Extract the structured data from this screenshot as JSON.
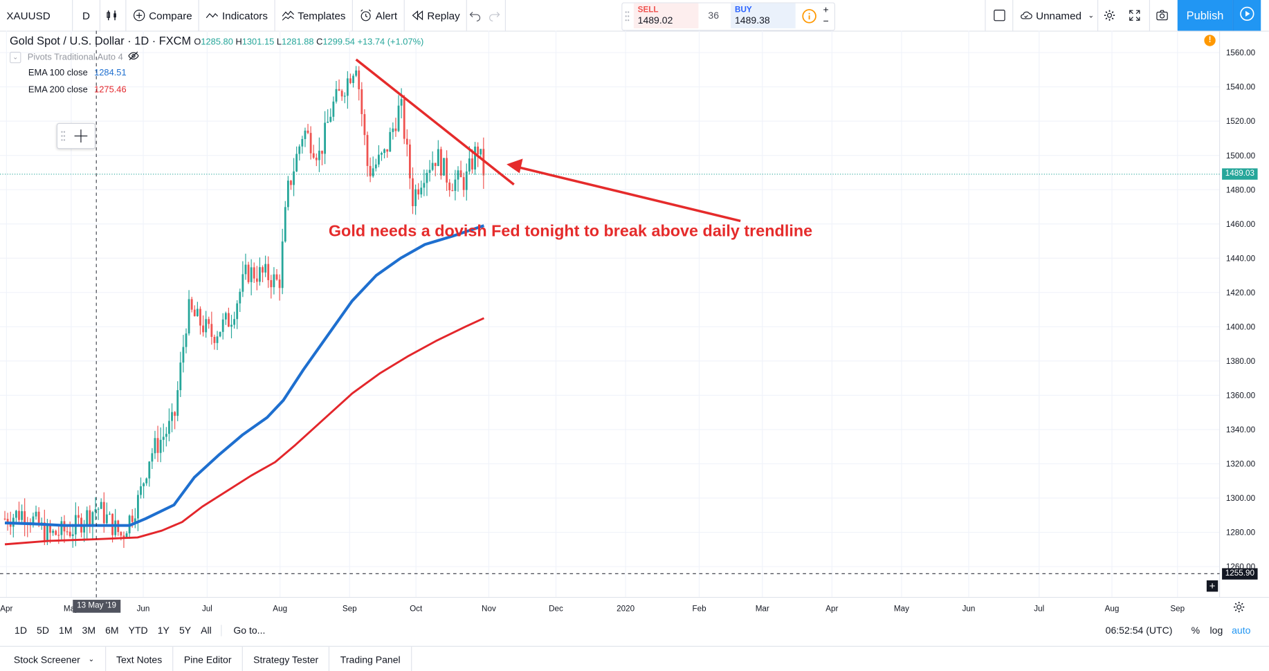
{
  "toolbar": {
    "symbol": "XAUUSD",
    "interval": "D",
    "compare": "Compare",
    "indicators": "Indicators",
    "templates": "Templates",
    "alert": "Alert",
    "replay": "Replay",
    "layout_name": "Unnamed",
    "publish": "Publish"
  },
  "trade": {
    "sell_label": "SELL",
    "sell_price": "1489.02",
    "spread": "36",
    "buy_label": "BUY",
    "buy_price": "1489.38"
  },
  "legend": {
    "title": "Gold Spot / U.S. Dollar · 1D · FXCM",
    "o_label": "O",
    "o": "1285.80",
    "h_label": "H",
    "h": "1301.15",
    "l_label": "L",
    "l": "1281.88",
    "c_label": "C",
    "c": "1299.54",
    "change": "+13.74 (+1.07%)",
    "pivots": "Pivots Traditional Auto 4",
    "ema100_label": "EMA 100 close",
    "ema100_value": "1284.51",
    "ema200_label": "EMA 200 close",
    "ema200_value": "1275.46"
  },
  "colors": {
    "up": "#26a69a",
    "down": "#ef5350",
    "ema100": "#1e6fcf",
    "ema200": "#e3262b",
    "annotation": "#e52b2b",
    "accent": "#2196f3"
  },
  "annotation": {
    "text": "Gold needs a dovish Fed tonight to break above daily trendline"
  },
  "crosshair": {
    "date_label": "13 May '19"
  },
  "price_axis": {
    "ticks": [
      "1560.00",
      "1540.00",
      "1520.00",
      "1500.00",
      "1480.00",
      "1460.00",
      "1440.00",
      "1420.00",
      "1400.00",
      "1380.00",
      "1360.00",
      "1340.00",
      "1320.00",
      "1300.00",
      "1280.00",
      "1260.00"
    ],
    "last_price": "1489.03",
    "cursor_price": "1255.90"
  },
  "time_axis": {
    "ticks": [
      "Apr",
      "May",
      "Jun",
      "Jul",
      "Aug",
      "Sep",
      "Oct",
      "Nov",
      "Dec",
      "2020",
      "Feb",
      "Mar",
      "Apr",
      "May",
      "Jun",
      "Jul",
      "Aug",
      "Sep"
    ]
  },
  "chart_data": {
    "type": "candlestick",
    "title": "Gold Spot / U.S. Dollar · 1D · FXCM",
    "y_range": [
      1252,
      1570
    ],
    "series": [
      {
        "name": "EMA 100 close",
        "points": [
          [
            "Apr",
            1286
          ],
          [
            "May",
            1284
          ],
          [
            "Jun",
            1284
          ],
          [
            "Jul",
            1320
          ],
          [
            "Aug",
            1348
          ],
          [
            "Sep",
            1410
          ],
          [
            "Oct",
            1445
          ],
          [
            "Nov",
            1458
          ]
        ]
      },
      {
        "name": "EMA 200 close",
        "points": [
          [
            "Apr",
            1273
          ],
          [
            "May",
            1275
          ],
          [
            "Jun",
            1278
          ],
          [
            "Jul",
            1298
          ],
          [
            "Aug",
            1320
          ],
          [
            "Sep",
            1360
          ],
          [
            "Oct",
            1385
          ],
          [
            "Nov",
            1405
          ]
        ]
      }
    ],
    "trendline": {
      "from": [
        "Sep",
        1556
      ],
      "to": [
        "Nov",
        1485
      ]
    },
    "last_price": 1489.03
  },
  "bottom": {
    "ranges": [
      "1D",
      "5D",
      "1M",
      "3M",
      "6M",
      "YTD",
      "1Y",
      "5Y",
      "All"
    ],
    "goto": "Go to...",
    "time": "06:52:54 (UTC)",
    "percent": "%",
    "log": "log",
    "auto": "auto"
  },
  "tabs": [
    "Stock Screener",
    "Text Notes",
    "Pine Editor",
    "Strategy Tester",
    "Trading Panel"
  ]
}
